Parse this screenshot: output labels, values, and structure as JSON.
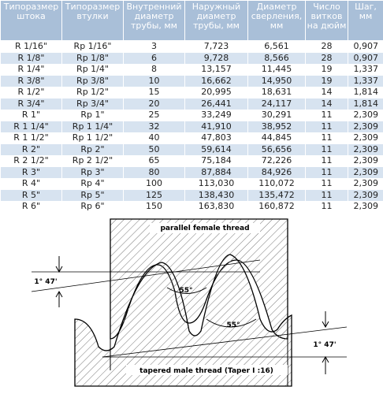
{
  "table": {
    "header": [
      "Типоразмер штока",
      "Типоразмер втулки",
      "Внутренний диаметр трубы, мм",
      "Наружный диаметр трубы, мм",
      "Диаметр сверления, мм",
      "Число витков на дюйм",
      "Шаг, мм"
    ],
    "rows": [
      [
        "R 1/16\"",
        "Rp 1/16\"",
        "3",
        "7,723",
        "6,561",
        "28",
        "0,907"
      ],
      [
        "R 1/8\"",
        "Rp 1/8\"",
        "6",
        "9,728",
        "8,566",
        "28",
        "0,907"
      ],
      [
        "R 1/4\"",
        "Rp 1/4\"",
        "8",
        "13,157",
        "11,445",
        "19",
        "1,337"
      ],
      [
        "R 3/8\"",
        "Rp 3/8\"",
        "10",
        "16,662",
        "14,950",
        "19",
        "1,337"
      ],
      [
        "R 1/2\"",
        "Rp 1/2\"",
        "15",
        "20,995",
        "18,631",
        "14",
        "1,814"
      ],
      [
        "R 3/4\"",
        "Rp 3/4\"",
        "20",
        "26,441",
        "24,117",
        "14",
        "1,814"
      ],
      [
        "R 1\"",
        "Rp 1\"",
        "25",
        "33,249",
        "30,291",
        "11",
        "2,309"
      ],
      [
        "R 1 1/4\"",
        "Rp 1 1/4\"",
        "32",
        "41,910",
        "38,952",
        "11",
        "2,309"
      ],
      [
        "R 1 1/2\"",
        "Rp 1 1/2\"",
        "40",
        "47,803",
        "44,845",
        "11",
        "2,309"
      ],
      [
        "R 2\"",
        "Rp 2\"",
        "50",
        "59,614",
        "56,656",
        "11",
        "2,309"
      ],
      [
        "R 2 1/2\"",
        "Rp 2 1/2\"",
        "65",
        "75,184",
        "72,226",
        "11",
        "2,309"
      ],
      [
        "R 3\"",
        "Rp 3\"",
        "80",
        "87,884",
        "84,926",
        "11",
        "2,309"
      ],
      [
        "R 4\"",
        "Rp 4\"",
        "100",
        "113,030",
        "110,072",
        "11",
        "2,309"
      ],
      [
        "R 5\"",
        "Rp 5\"",
        "125",
        "138,430",
        "135,472",
        "11",
        "2,309"
      ],
      [
        "R 6\"",
        "Rp 6\"",
        "150",
        "163,830",
        "160,872",
        "11",
        "2,309"
      ]
    ]
  },
  "diagram": {
    "female_label": "parallel female thread",
    "male_label": "tapered male thread  (Taper I :16)",
    "angle_1": "55°",
    "angle_2": "55°",
    "taper_left": "1° 47'",
    "taper_right": "1° 47'"
  }
}
